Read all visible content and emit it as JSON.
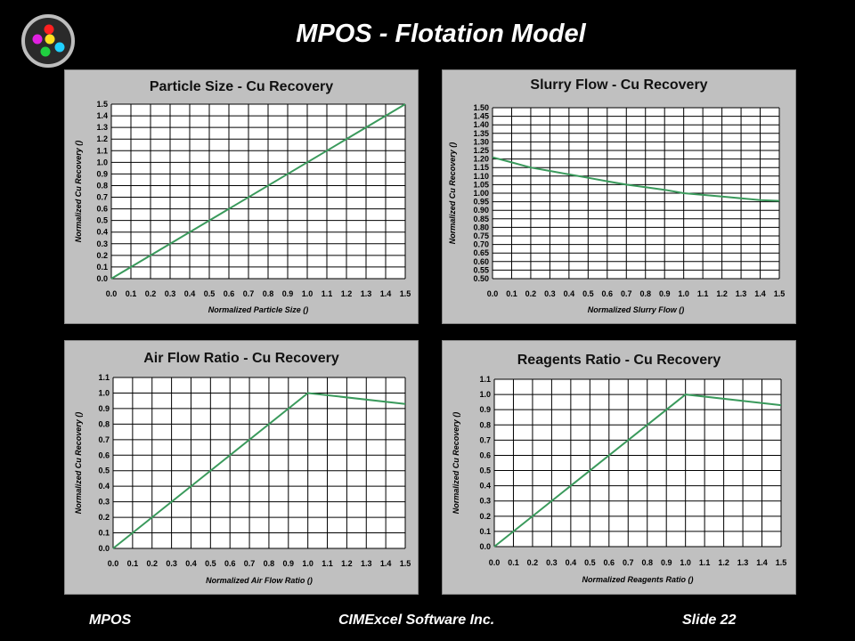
{
  "slide": {
    "title": "MPOS - Flotation Model",
    "footer_left": "MPOS",
    "footer_center": "CIMExcel Software Inc.",
    "footer_right": "Slide 22"
  },
  "colors": {
    "line": "#3a9a5c",
    "panel": "#c0c0c0",
    "plot": "#ffffff",
    "grid": "#000000"
  },
  "chart_data": [
    {
      "type": "line",
      "title": "Particle Size - Cu Recovery",
      "xlabel": "Normalized Particle Size ()",
      "ylabel": "Normalized Cu Recovery ()",
      "xlim": [
        0,
        1.5
      ],
      "ylim": [
        0,
        1.5
      ],
      "x_ticks": [
        "0.0",
        "0.1",
        "0.2",
        "0.3",
        "0.4",
        "0.5",
        "0.6",
        "0.7",
        "0.8",
        "0.9",
        "1.0",
        "1.1",
        "1.2",
        "1.3",
        "1.4",
        "1.5"
      ],
      "y_ticks": [
        "0.0",
        "0.1",
        "0.2",
        "0.3",
        "0.4",
        "0.5",
        "0.6",
        "0.7",
        "0.8",
        "0.9",
        "1.0",
        "1.1",
        "1.2",
        "1.3",
        "1.4",
        "1.5"
      ],
      "grid": true,
      "series": [
        {
          "x": [
            0.0,
            1.5
          ],
          "y": [
            0.0,
            1.5
          ]
        }
      ]
    },
    {
      "type": "line",
      "title": "Slurry Flow - Cu Recovery",
      "xlabel": "Normalized Slurry Flow ()",
      "ylabel": "Normalized Cu Recovery ()",
      "xlim": [
        0,
        1.5
      ],
      "ylim": [
        0.5,
        1.5
      ],
      "x_ticks": [
        "0.0",
        "0.1",
        "0.2",
        "0.3",
        "0.4",
        "0.5",
        "0.6",
        "0.7",
        "0.8",
        "0.9",
        "1.0",
        "1.1",
        "1.2",
        "1.3",
        "1.4",
        "1.5"
      ],
      "y_ticks": [
        "0.50",
        "0.55",
        "0.60",
        "0.65",
        "0.70",
        "0.75",
        "0.80",
        "0.85",
        "0.90",
        "0.95",
        "1.00",
        "1.05",
        "1.10",
        "1.15",
        "1.20",
        "1.25",
        "1.30",
        "1.35",
        "1.40",
        "1.45",
        "1.50"
      ],
      "grid": true,
      "series": [
        {
          "x": [
            0.0,
            0.1,
            0.2,
            0.3,
            0.4,
            0.5,
            0.6,
            0.7,
            0.8,
            0.9,
            1.0,
            1.1,
            1.2,
            1.3,
            1.4,
            1.5
          ],
          "y": [
            1.21,
            1.18,
            1.15,
            1.13,
            1.11,
            1.09,
            1.07,
            1.05,
            1.035,
            1.02,
            1.0,
            0.99,
            0.98,
            0.97,
            0.96,
            0.955
          ]
        }
      ]
    },
    {
      "type": "line",
      "title": "Air Flow Ratio - Cu Recovery",
      "xlabel": "Normalized Air Flow Ratio ()",
      "ylabel": "Normalized Cu Recovery ()",
      "xlim": [
        0,
        1.5
      ],
      "ylim": [
        0,
        1.1
      ],
      "x_ticks": [
        "0.0",
        "0.1",
        "0.2",
        "0.3",
        "0.4",
        "0.5",
        "0.6",
        "0.7",
        "0.8",
        "0.9",
        "1.0",
        "1.1",
        "1.2",
        "1.3",
        "1.4",
        "1.5"
      ],
      "y_ticks": [
        "0.0",
        "0.1",
        "0.2",
        "0.3",
        "0.4",
        "0.5",
        "0.6",
        "0.7",
        "0.8",
        "0.9",
        "1.0",
        "1.1"
      ],
      "grid": true,
      "series": [
        {
          "x": [
            0.0,
            1.0,
            1.5
          ],
          "y": [
            0.0,
            1.0,
            0.93
          ]
        }
      ]
    },
    {
      "type": "line",
      "title": "Reagents Ratio - Cu Recovery",
      "xlabel": "Normalized Reagents Ratio ()",
      "ylabel": "Normalized Cu Recovery ()",
      "xlim": [
        0,
        1.5
      ],
      "ylim": [
        0,
        1.1
      ],
      "x_ticks": [
        "0.0",
        "0.1",
        "0.2",
        "0.3",
        "0.4",
        "0.5",
        "0.6",
        "0.7",
        "0.8",
        "0.9",
        "1.0",
        "1.1",
        "1.2",
        "1.3",
        "1.4",
        "1.5"
      ],
      "y_ticks": [
        "0.0",
        "0.1",
        "0.2",
        "0.3",
        "0.4",
        "0.5",
        "0.6",
        "0.7",
        "0.8",
        "0.9",
        "1.0",
        "1.1"
      ],
      "grid": true,
      "series": [
        {
          "x": [
            0.0,
            1.0,
            1.5
          ],
          "y": [
            0.0,
            1.0,
            0.93
          ]
        }
      ]
    }
  ]
}
